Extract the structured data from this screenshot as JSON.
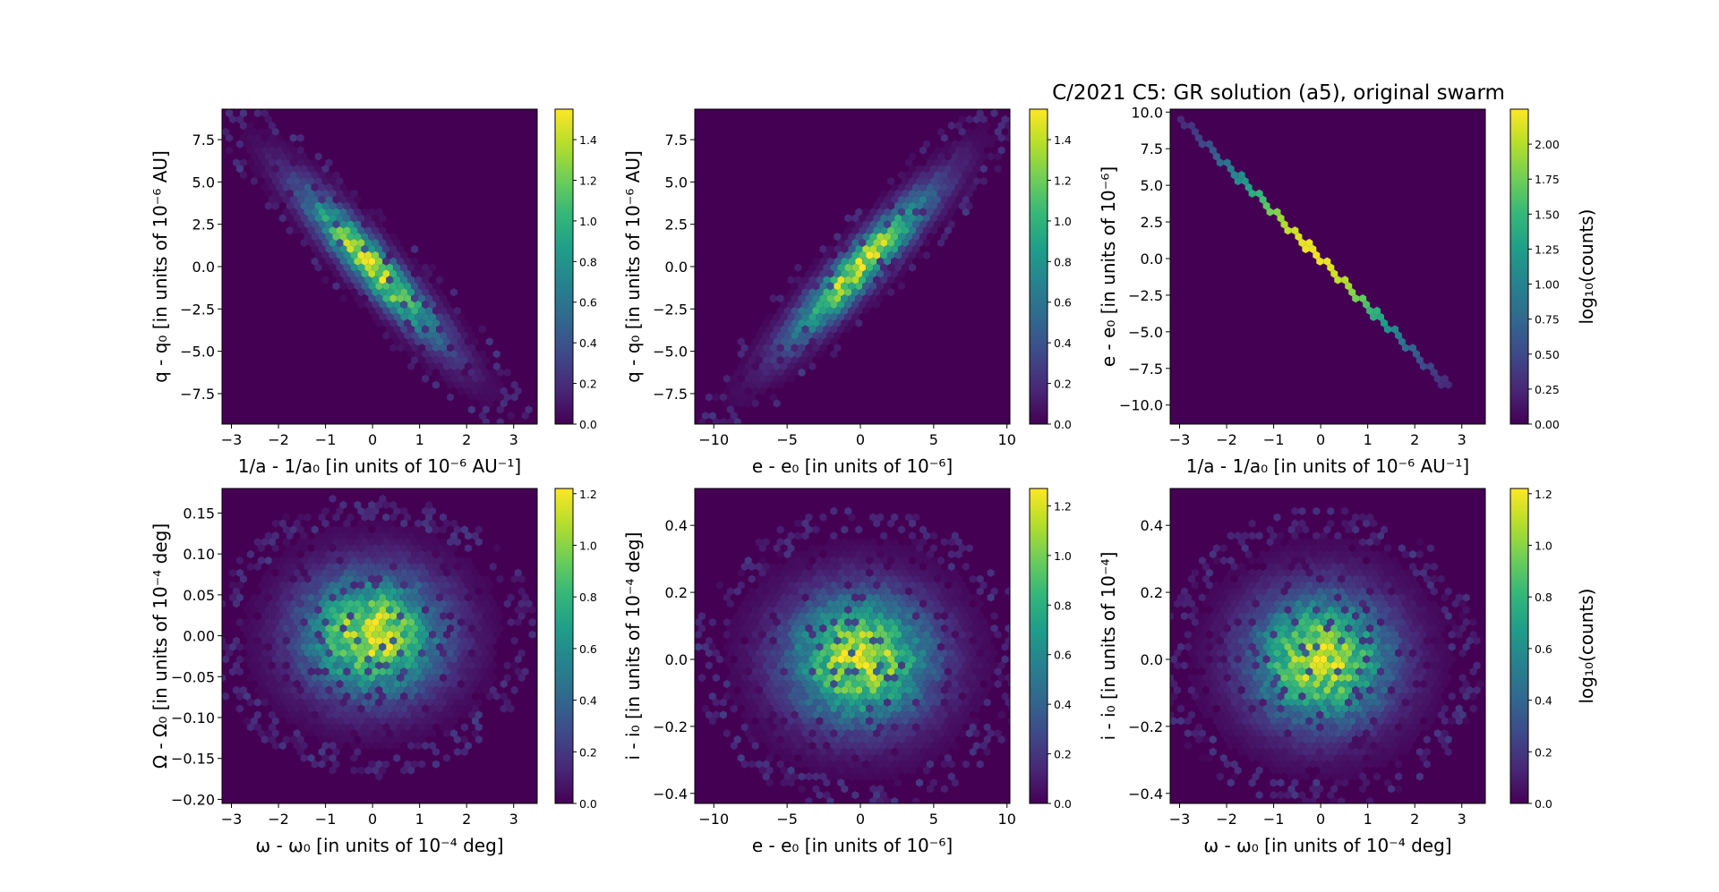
{
  "suptitle": "C/2021 C5: GR solution (a5), original swarm",
  "colormap": [
    "#440154",
    "#482878",
    "#3e4989",
    "#31688e",
    "#26828e",
    "#1f9e89",
    "#35b779",
    "#6ece58",
    "#b5de2b",
    "#fde725"
  ],
  "chart_data": [
    {
      "type": "heatmap",
      "subtype": "hexbin",
      "xlabel": "1/a - 1/a₀ [in units of 10⁻⁶ AU⁻¹]",
      "ylabel": "q - q₀ [in units of 10⁻⁶ AU]",
      "xlim": [
        -3.2,
        3.5
      ],
      "ylim": [
        -9.3,
        9.3
      ],
      "xticks": [
        -3,
        -2,
        -1,
        0,
        1,
        2,
        3
      ],
      "xtick_labels": [
        "−3",
        "−2",
        "−1",
        "0",
        "1",
        "2",
        "3"
      ],
      "yticks": [
        -7.5,
        -5.0,
        -2.5,
        0.0,
        2.5,
        5.0,
        7.5
      ],
      "ytick_labels": [
        "−7.5",
        "−5.0",
        "−2.5",
        "0.0",
        "2.5",
        "5.0",
        "7.5"
      ],
      "distribution": {
        "shape": "correlated_gaussian",
        "cx": 0,
        "cy": 0,
        "sx": 1.0,
        "sy": 3.0,
        "rho": -0.93,
        "peak_log10_counts": 1.5
      },
      "colorbar": {
        "label": "",
        "range": [
          0,
          1.55
        ],
        "ticks": [
          0.0,
          0.2,
          0.4,
          0.6,
          0.8,
          1.0,
          1.2,
          1.4
        ],
        "tick_labels": [
          "0.0",
          "0.2",
          "0.4",
          "0.6",
          "0.8",
          "1.0",
          "1.2",
          "1.4"
        ]
      }
    },
    {
      "type": "heatmap",
      "subtype": "hexbin",
      "xlabel": "e - e₀ [in units of 10⁻⁶]",
      "ylabel": "q - q₀ [in units of 10⁻⁶ AU]",
      "xlim": [
        -11.3,
        10.2
      ],
      "ylim": [
        -9.3,
        9.3
      ],
      "xticks": [
        -10,
        -5,
        0,
        5,
        10
      ],
      "xtick_labels": [
        "−10",
        "−5",
        "0",
        "5",
        "10"
      ],
      "yticks": [
        -7.5,
        -5.0,
        -2.5,
        0.0,
        2.5,
        5.0,
        7.5
      ],
      "ytick_labels": [
        "−7.5",
        "−5.0",
        "−2.5",
        "0.0",
        "2.5",
        "5.0",
        "7.5"
      ],
      "distribution": {
        "shape": "correlated_gaussian",
        "cx": 0,
        "cy": 0,
        "sx": 3.3,
        "sy": 3.0,
        "rho": 0.93,
        "peak_log10_counts": 1.5
      },
      "colorbar": {
        "label": "",
        "range": [
          0,
          1.55
        ],
        "ticks": [
          0.0,
          0.2,
          0.4,
          0.6,
          0.8,
          1.0,
          1.2,
          1.4
        ],
        "tick_labels": [
          "0.0",
          "0.2",
          "0.4",
          "0.6",
          "0.8",
          "1.0",
          "1.2",
          "1.4"
        ]
      }
    },
    {
      "type": "heatmap",
      "subtype": "hexbin",
      "xlabel": "1/a - 1/a₀ [in units of 10⁻⁶ AU⁻¹]",
      "ylabel": "e - e₀ [in units of 10⁻⁶]",
      "xlim": [
        -3.2,
        3.5
      ],
      "ylim": [
        -11.3,
        10.2
      ],
      "xticks": [
        -3,
        -2,
        -1,
        0,
        1,
        2,
        3
      ],
      "xtick_labels": [
        "−3",
        "−2",
        "−1",
        "0",
        "1",
        "2",
        "3"
      ],
      "yticks": [
        -10.0,
        -7.5,
        -5.0,
        -2.5,
        0.0,
        2.5,
        5.0,
        7.5,
        10.0
      ],
      "ytick_labels": [
        "−10.0",
        "−7.5",
        "−5.0",
        "−2.5",
        "0.0",
        "2.5",
        "5.0",
        "7.5",
        "10.0"
      ],
      "distribution": {
        "shape": "line",
        "x0": -3.0,
        "y0": 9.6,
        "x1": 2.75,
        "y1": -8.9,
        "peak_log10_counts": 2.2
      },
      "colorbar": {
        "label": "log₁₀(counts)",
        "range": [
          0,
          2.25
        ],
        "ticks": [
          0.0,
          0.25,
          0.5,
          0.75,
          1.0,
          1.25,
          1.5,
          1.75,
          2.0
        ],
        "tick_labels": [
          "0.00",
          "0.25",
          "0.50",
          "0.75",
          "1.00",
          "1.25",
          "1.50",
          "1.75",
          "2.00"
        ]
      }
    },
    {
      "type": "heatmap",
      "subtype": "hexbin",
      "xlabel": "ω - ω₀ [in units of 10⁻⁴ deg]",
      "ylabel": "Ω - Ω₀ [in units of 10⁻⁴ deg]",
      "xlim": [
        -3.2,
        3.5
      ],
      "ylim": [
        -0.205,
        0.18
      ],
      "xticks": [
        -3,
        -2,
        -1,
        0,
        1,
        2,
        3
      ],
      "xtick_labels": [
        "−3",
        "−2",
        "−1",
        "0",
        "1",
        "2",
        "3"
      ],
      "yticks": [
        -0.2,
        -0.15,
        -0.1,
        -0.05,
        0.0,
        0.05,
        0.1,
        0.15
      ],
      "ytick_labels": [
        "−0.20",
        "−0.15",
        "−0.10",
        "−0.05",
        "0.00",
        "0.05",
        "0.10",
        "0.15"
      ],
      "distribution": {
        "shape": "correlated_gaussian",
        "cx": 0,
        "cy": 0,
        "sx": 1.0,
        "sy": 0.05,
        "rho": 0.0,
        "peak_log10_counts": 1.2
      },
      "colorbar": {
        "label": "",
        "range": [
          0,
          1.22
        ],
        "ticks": [
          0.0,
          0.2,
          0.4,
          0.6,
          0.8,
          1.0,
          1.2
        ],
        "tick_labels": [
          "0.0",
          "0.2",
          "0.4",
          "0.6",
          "0.8",
          "1.0",
          "1.2"
        ]
      }
    },
    {
      "type": "heatmap",
      "subtype": "hexbin",
      "xlabel": "e - e₀ [in units of 10⁻⁶]",
      "ylabel": "i - i₀ [in units of 10⁻⁴ deg]",
      "xlim": [
        -11.3,
        10.2
      ],
      "ylim": [
        -0.43,
        0.51
      ],
      "xticks": [
        -10,
        -5,
        0,
        5,
        10
      ],
      "xtick_labels": [
        "−10",
        "−5",
        "0",
        "5",
        "10"
      ],
      "yticks": [
        -0.4,
        -0.2,
        0.0,
        0.2,
        0.4
      ],
      "ytick_labels": [
        "−0.4",
        "−0.2",
        "0.0",
        "0.2",
        "0.4"
      ],
      "distribution": {
        "shape": "correlated_gaussian",
        "cx": 0,
        "cy": 0,
        "sx": 3.3,
        "sy": 0.13,
        "rho": 0.0,
        "peak_log10_counts": 1.25
      },
      "colorbar": {
        "label": "",
        "range": [
          0,
          1.27
        ],
        "ticks": [
          0.0,
          0.2,
          0.4,
          0.6,
          0.8,
          1.0,
          1.2
        ],
        "tick_labels": [
          "0.0",
          "0.2",
          "0.4",
          "0.6",
          "0.8",
          "1.0",
          "1.2"
        ]
      }
    },
    {
      "type": "heatmap",
      "subtype": "hexbin",
      "xlabel": "ω - ω₀ [in units of 10⁻⁴ deg]",
      "ylabel": "i - i₀ [in units of 10⁻⁴]",
      "xlim": [
        -3.2,
        3.5
      ],
      "ylim": [
        -0.43,
        0.51
      ],
      "xticks": [
        -3,
        -2,
        -1,
        0,
        1,
        2,
        3
      ],
      "xtick_labels": [
        "−3",
        "−2",
        "−1",
        "0",
        "1",
        "2",
        "3"
      ],
      "yticks": [
        -0.4,
        -0.2,
        0.0,
        0.2,
        0.4
      ],
      "ytick_labels": [
        "−0.4",
        "−0.2",
        "0.0",
        "0.2",
        "0.4"
      ],
      "distribution": {
        "shape": "correlated_gaussian",
        "cx": 0,
        "cy": 0,
        "sx": 1.0,
        "sy": 0.13,
        "rho": 0.0,
        "peak_log10_counts": 1.2
      },
      "colorbar": {
        "label": "log₁₀(counts)",
        "range": [
          0,
          1.22
        ],
        "ticks": [
          0.0,
          0.2,
          0.4,
          0.6,
          0.8,
          1.0,
          1.2
        ],
        "tick_labels": [
          "0.0",
          "0.2",
          "0.4",
          "0.6",
          "0.8",
          "1.0",
          "1.2"
        ]
      }
    }
  ]
}
